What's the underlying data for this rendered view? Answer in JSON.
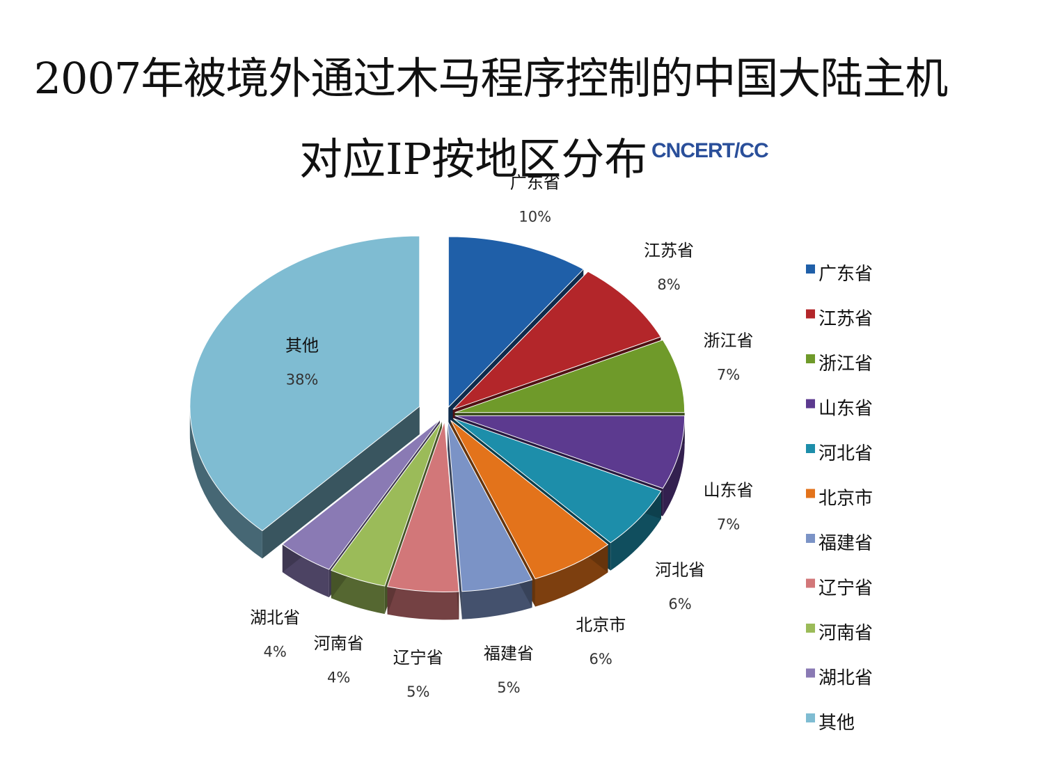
{
  "title": {
    "line1": "2007年被境外通过木马程序控制的中国大陆主机",
    "line2": "对应IP按地区分布"
  },
  "logo": {
    "text": "CNCERT/CC",
    "icon": "cncert-logo-icon",
    "color": "#2a4f9a"
  },
  "chart_data": {
    "type": "pie",
    "style": "3d-exploded",
    "legend_position": "right",
    "categories": [
      "广东省",
      "江苏省",
      "浙江省",
      "山东省",
      "河北省",
      "北京市",
      "福建省",
      "辽宁省",
      "河南省",
      "湖北省",
      "其他"
    ],
    "values": [
      10,
      8,
      7,
      7,
      6,
      6,
      5,
      5,
      4,
      4,
      38
    ],
    "value_labels": [
      "10%",
      "8%",
      "7%",
      "7%",
      "6%",
      "6%",
      "5%",
      "5%",
      "4%",
      "4%",
      "38%"
    ],
    "data_label_names": [
      "广东省",
      "江苏省",
      "浙江省",
      "山东省",
      "河北省",
      "北京市",
      "福建省",
      "辽宁省",
      "河南省",
      "湖北省",
      "其他"
    ],
    "unit": "%",
    "colors": [
      "#1f5fa8",
      "#b3262a",
      "#6f9a2a",
      "#5c3a8f",
      "#1d8eaa",
      "#e3731b",
      "#7b93c6",
      "#d27779",
      "#9bbb59",
      "#8a7ab4",
      "#7fbcd2"
    ]
  }
}
